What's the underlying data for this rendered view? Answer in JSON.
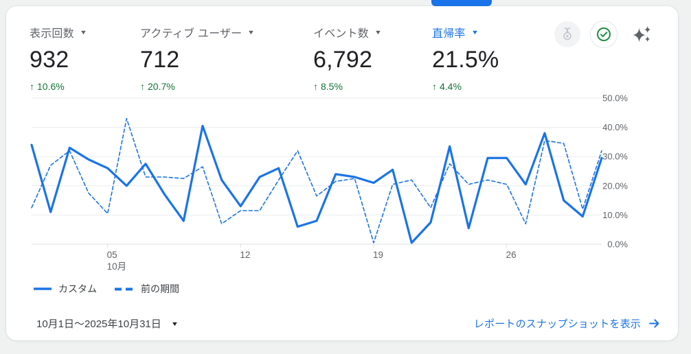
{
  "metrics": [
    {
      "label": "表示回数",
      "value": "932",
      "delta_arrow": "↑",
      "delta": "10.6%"
    },
    {
      "label": "アクティブ ユーザー",
      "value": "712",
      "delta_arrow": "↑",
      "delta": "20.7%"
    },
    {
      "label": "イベント数",
      "value": "6,792",
      "delta_arrow": "↑",
      "delta": "8.5%"
    },
    {
      "label": "直帰率",
      "value": "21.5%",
      "delta_arrow": "↑",
      "delta": "4.4%"
    }
  ],
  "header_icons": [
    "medal-icon",
    "check-circle-icon",
    "sparkle-icon"
  ],
  "chart_data": {
    "type": "line",
    "x": [
      1,
      2,
      3,
      4,
      5,
      6,
      7,
      8,
      9,
      10,
      11,
      12,
      13,
      14,
      15,
      16,
      17,
      18,
      19,
      20,
      21,
      22,
      23,
      24,
      25,
      26,
      27,
      28,
      29,
      30,
      31
    ],
    "series": [
      {
        "name": "カスタム",
        "style": "solid",
        "values": [
          34,
          11,
          33,
          29,
          26,
          20,
          27.5,
          17,
          8,
          40.5,
          22,
          13,
          23,
          26,
          6,
          8,
          24,
          23,
          21,
          25.5,
          0.5,
          7.5,
          33.5,
          5.5,
          29.5,
          29.5,
          20.5,
          38,
          15,
          9.5,
          29.5
        ]
      },
      {
        "name": "前の期間",
        "style": "dashed",
        "values": [
          12.5,
          27,
          32,
          17.5,
          10.5,
          43,
          23,
          23,
          22.5,
          26.5,
          7,
          11.5,
          11.5,
          22,
          32,
          16.5,
          21.5,
          22.5,
          0.5,
          20.5,
          22,
          12.5,
          27.5,
          20.5,
          22,
          20.5,
          7,
          35.5,
          34.5,
          12,
          32
        ]
      }
    ],
    "ylim": [
      0,
      50
    ],
    "yticks": [
      "0.0%",
      "10.0%",
      "20.0%",
      "30.0%",
      "40.0%",
      "50.0%"
    ],
    "xticks": [
      {
        "day": 5,
        "label": "05",
        "sublabel": "10月"
      },
      {
        "day": 12,
        "label": "12"
      },
      {
        "day": 19,
        "label": "19"
      },
      {
        "day": 26,
        "label": "26"
      }
    ],
    "grid": true,
    "legend_position": "bottom-left"
  },
  "footer": {
    "date_range": "10月1日〜2025年10月31日",
    "snapshot_link": "レポートのスナップショットを表示"
  },
  "colors": {
    "accent": "#1a73e8",
    "positive": "#137333",
    "text_primary": "#202124",
    "text_secondary": "#5f6368",
    "grid": "#e9ebee",
    "axis": "#dadee2"
  }
}
